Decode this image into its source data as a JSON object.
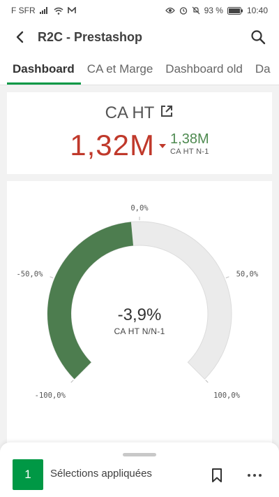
{
  "status_bar": {
    "carrier": "F SFR",
    "battery_percent": "93 %",
    "time": "10:40",
    "icons": [
      "signal-icon",
      "wifi-icon",
      "mail-icon",
      "eye-icon",
      "alarm-icon",
      "mute-icon",
      "battery-icon"
    ]
  },
  "app_bar": {
    "title": "R2C - Prestashop"
  },
  "tabs": [
    {
      "label": "Dashboard",
      "active": true
    },
    {
      "label": "CA et Marge",
      "active": false
    },
    {
      "label": "Dashboard old",
      "active": false
    },
    {
      "label": "Da",
      "active": false
    }
  ],
  "kpi": {
    "title": "CA HT",
    "value": "1,32M",
    "secondary_value": "1,38M",
    "secondary_label": "CA HT N-1",
    "colors": {
      "value": "#c0392b",
      "secondary": "#4e8a50"
    }
  },
  "gauge": {
    "value_text": "-3,9%",
    "label": "CA HT N/N-1",
    "min": -1.0,
    "max": 1.0,
    "segment_start": -1.0,
    "segment_end": -0.039,
    "tick_labels": [
      "-100,0%",
      "-50,0%",
      "0,0%",
      "50,0%",
      "100,0%"
    ],
    "colors": {
      "fill": "#4d7d4f",
      "track": "#ebebeb"
    }
  },
  "selections": {
    "count": "1",
    "label": "Sélections appliquées"
  }
}
